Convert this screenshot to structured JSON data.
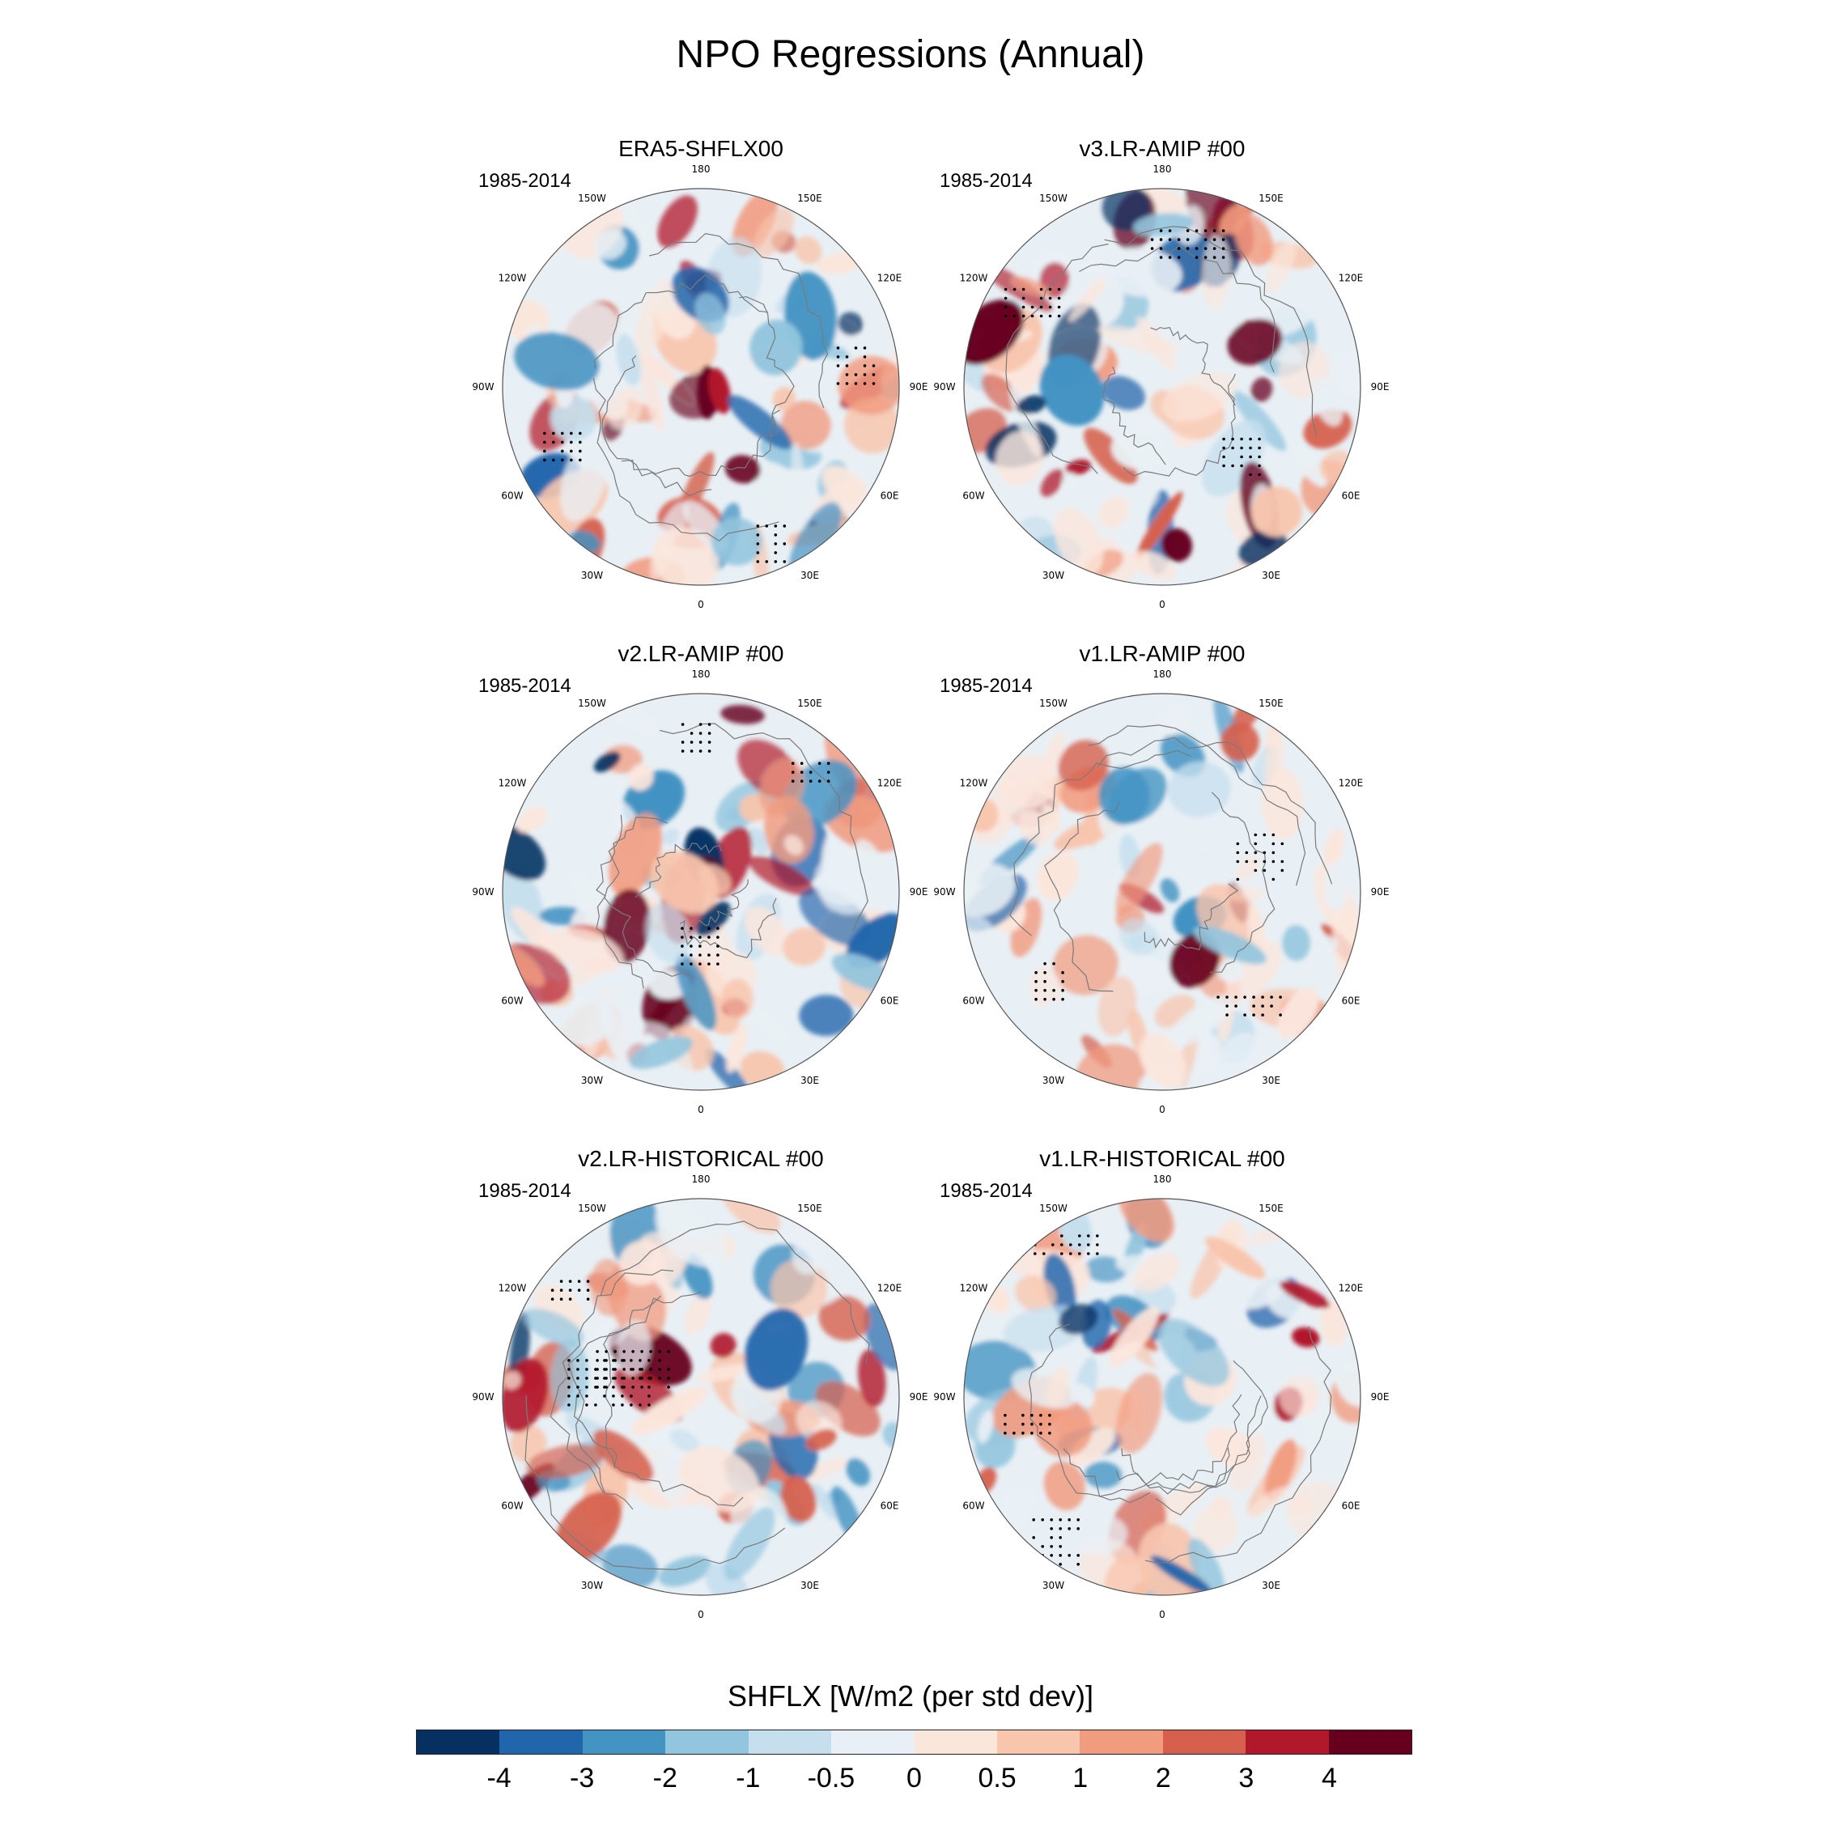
{
  "chart_data": {
    "type": "polar-stereographic filled contour maps (6 panels)",
    "title": "NPO Regressions (Annual)",
    "variable_label": "SHFLX [W/m2 (per std dev)]",
    "longitude_labels": [
      "180",
      "150E",
      "120E",
      "90E",
      "60E",
      "30E",
      "0",
      "30W",
      "60W",
      "90W",
      "120W",
      "150W"
    ],
    "panels": [
      {
        "title": "ERA5-SHFLX00",
        "period": "1985-2014"
      },
      {
        "title": "v3.LR-AMIP  #00",
        "period": "1985-2014"
      },
      {
        "title": "v2.LR-AMIP  #00",
        "period": "1985-2014"
      },
      {
        "title": "v1.LR-AMIP  #00",
        "period": "1985-2014"
      },
      {
        "title": "v2.LR-HISTORICAL  #00",
        "period": "1985-2014"
      },
      {
        "title": "v1.LR-HISTORICAL  #00",
        "period": "1985-2014"
      }
    ],
    "colorbar": {
      "levels": [
        "-4",
        "-3",
        "-2",
        "-1",
        "-0.5",
        "0",
        "0.5",
        "1",
        "2",
        "3",
        "4"
      ],
      "colors": [
        "#053061",
        "#2166ac",
        "#4393c3",
        "#92c5de",
        "#c6dfee",
        "#e9f0f5",
        "#fbe6dc",
        "#f8c5ad",
        "#f19b7f",
        "#d6604d",
        "#b2182b",
        "#67001f"
      ]
    }
  }
}
